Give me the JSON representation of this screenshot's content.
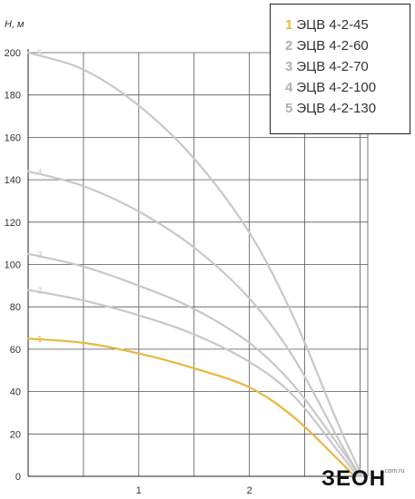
{
  "chart_data": {
    "type": "line",
    "title": "",
    "ylabel": "Н, м",
    "xlabel": "",
    "xlim": [
      0,
      3.07
    ],
    "ylim": [
      0,
      200
    ],
    "x_ticks": [
      1,
      2
    ],
    "y_ticks": [
      0,
      20,
      40,
      60,
      80,
      100,
      120,
      140,
      160,
      180,
      200
    ],
    "grid": true,
    "legend_position": "top-right",
    "series": [
      {
        "id": "1",
        "name": "ЭЦВ 4-2-45",
        "color": "#e8b83c",
        "x": [
          0,
          0.5,
          1.0,
          1.5,
          2.0,
          2.4,
          2.8,
          2.95
        ],
        "y": [
          65,
          63,
          58,
          51,
          42,
          28,
          8,
          0
        ]
      },
      {
        "id": "2",
        "name": "ЭЦВ 4-2-60",
        "color": "#c8c8c8",
        "x": [
          0,
          0.5,
          1.0,
          1.5,
          2.0,
          2.4,
          2.8,
          2.98
        ],
        "y": [
          88,
          83,
          76,
          67,
          54,
          38,
          12,
          0
        ]
      },
      {
        "id": "3",
        "name": "ЭЦВ 4-2-70",
        "color": "#c8c8c8",
        "x": [
          0,
          0.5,
          1.0,
          1.5,
          2.0,
          2.4,
          2.8,
          3.0
        ],
        "y": [
          105,
          99,
          90,
          79,
          63,
          43,
          15,
          0
        ]
      },
      {
        "id": "4",
        "name": "ЭЦВ 4-2-100",
        "color": "#c8c8c8",
        "x": [
          0,
          0.5,
          1.0,
          1.5,
          2.0,
          2.4,
          2.8,
          3.0
        ],
        "y": [
          144,
          137,
          125,
          108,
          84,
          56,
          18,
          0
        ]
      },
      {
        "id": "5",
        "name": "ЭЦВ 4-2-130",
        "color": "#c8c8c8",
        "x": [
          0,
          0.5,
          1.0,
          1.5,
          2.0,
          2.4,
          2.8,
          3.02
        ],
        "y": [
          200,
          192,
          175,
          150,
          115,
          75,
          25,
          0
        ]
      }
    ]
  },
  "logo": {
    "text": "ЗЕОН",
    "sub": ".com.ru"
  }
}
